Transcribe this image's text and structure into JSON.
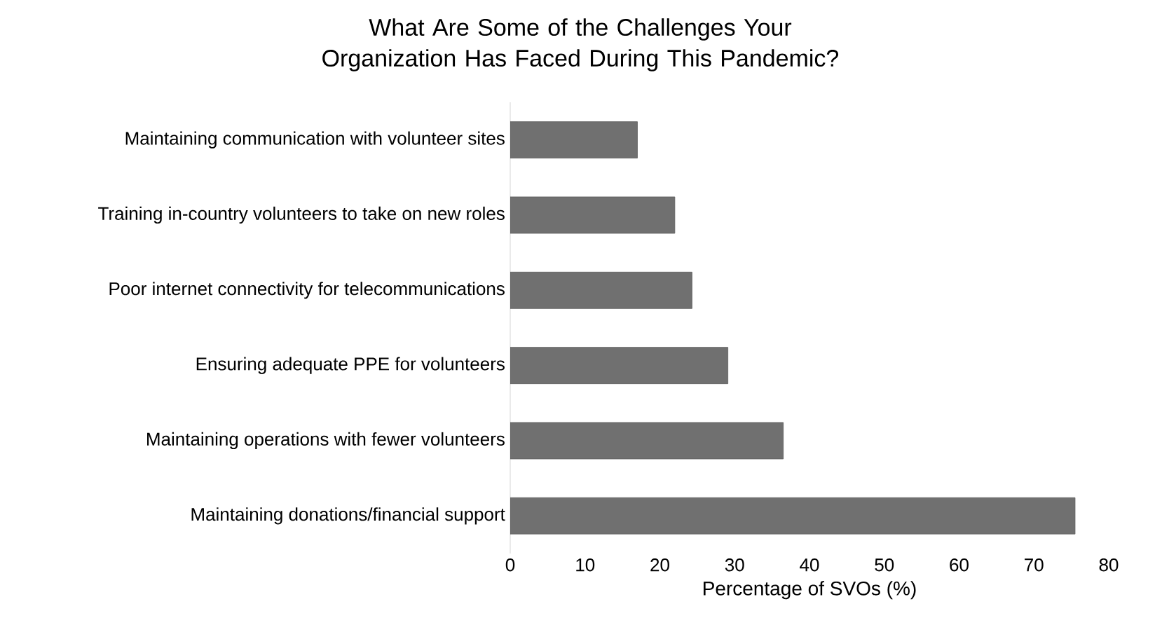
{
  "chart_data": {
    "type": "bar",
    "orientation": "horizontal",
    "title": "What Are Some of the Challenges Your Organization Has Faced During This Pandemic?",
    "categories": [
      "Maintaining communication with volunteer sites",
      "Training in-country volunteers to take on new roles",
      "Poor internet connectivity for telecommunications",
      "Ensuring adequate PPE for volunteers",
      "Maintaining operations with fewer volunteers",
      "Maintaining donations/financial support"
    ],
    "values": [
      17,
      22,
      24.3,
      29.1,
      36.5,
      75.5
    ],
    "color": "#707070",
    "xlabel": "Percentage of SVOs (%)",
    "xlim": [
      0,
      80
    ],
    "xticks": [
      0,
      10,
      20,
      30,
      40,
      50,
      60,
      70,
      80
    ],
    "grid": false
  }
}
